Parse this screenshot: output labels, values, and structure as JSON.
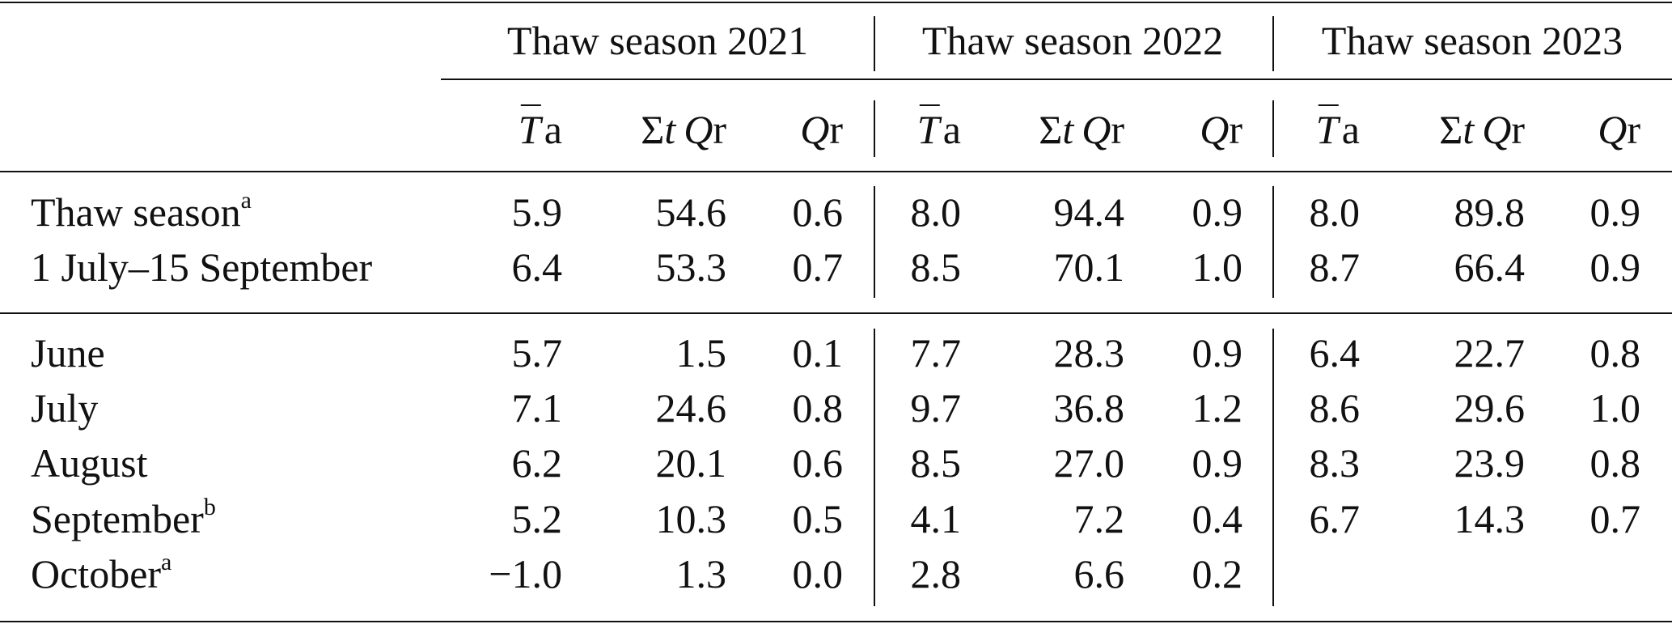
{
  "header": {
    "groups": [
      {
        "label": "Thaw season 2021"
      },
      {
        "label": "Thaw season 2022"
      },
      {
        "label": "Thaw season 2023"
      }
    ],
    "columns": {
      "ta_symbol": "T",
      "ta_sub": "a",
      "sum_symbol": "Σ",
      "sum_sub": "t",
      "q_symbol": "Q",
      "q_sub": "r"
    }
  },
  "rows": [
    {
      "label": "Thaw season",
      "sup": "a",
      "values": [
        "5.9",
        "54.6",
        "0.6",
        "8.0",
        "94.4",
        "0.9",
        "8.0",
        "89.8",
        "0.9"
      ]
    },
    {
      "label": "1 July–15 September",
      "sup": "",
      "values": [
        "6.4",
        "53.3",
        "0.7",
        "8.5",
        "70.1",
        "1.0",
        "8.7",
        "66.4",
        "0.9"
      ]
    },
    {
      "label": "June",
      "sup": "",
      "values": [
        "5.7",
        "1.5",
        "0.1",
        "7.7",
        "28.3",
        "0.9",
        "6.4",
        "22.7",
        "0.8"
      ]
    },
    {
      "label": "July",
      "sup": "",
      "values": [
        "7.1",
        "24.6",
        "0.8",
        "9.7",
        "36.8",
        "1.2",
        "8.6",
        "29.6",
        "1.0"
      ]
    },
    {
      "label": "August",
      "sup": "",
      "values": [
        "6.2",
        "20.1",
        "0.6",
        "8.5",
        "27.0",
        "0.9",
        "8.3",
        "23.9",
        "0.8"
      ]
    },
    {
      "label": "September",
      "sup": "b",
      "values": [
        "5.2",
        "10.3",
        "0.5",
        "4.1",
        "7.2",
        "0.4",
        "6.7",
        "14.3",
        "0.7"
      ]
    },
    {
      "label": "October",
      "sup": "a",
      "values": [
        "−1.0",
        "1.3",
        "0.0",
        "2.8",
        "6.6",
        "0.2",
        "",
        "",
        ""
      ]
    }
  ]
}
